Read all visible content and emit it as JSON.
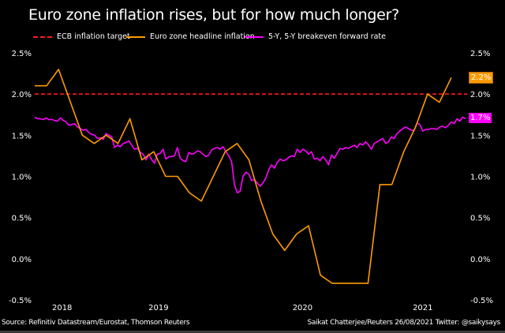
{
  "chart_data": {
    "type": "line",
    "title": "Euro zone inflation rises, but for how much longer?",
    "xlabel": "",
    "ylabel": "",
    "ylim": [
      -0.5,
      2.5
    ],
    "yticks": [
      "2.5%",
      "2.0%",
      "1.5%",
      "1.0%",
      "0.5%",
      "0.0%",
      "-0.5%"
    ],
    "ytick_values": [
      2.5,
      2.0,
      1.5,
      1.0,
      0.5,
      0.0,
      -0.5
    ],
    "xticks": [
      {
        "label": "2018",
        "month_index": 2.3
      },
      {
        "label": "2019",
        "month_index": 10.4
      },
      {
        "label": "2020",
        "month_index": 22.5
      },
      {
        "label": "2021",
        "month_index": 32.6
      }
    ],
    "x_range_months": [
      0,
      35
    ],
    "legend_position": "top",
    "series": [
      {
        "name": "ECB inflation target",
        "style": "dashed",
        "color": "#ff1a1a",
        "value": 2.0
      },
      {
        "name": "Euro zone headline inflation",
        "style": "solid",
        "color": "#ff9a00",
        "end_label": "2.2%",
        "values": [
          2.1,
          2.1,
          2.3,
          1.9,
          1.5,
          1.4,
          1.5,
          1.4,
          1.7,
          1.2,
          1.3,
          1.0,
          1.0,
          0.8,
          0.7,
          1.0,
          1.3,
          1.4,
          1.2,
          0.7,
          0.3,
          0.1,
          0.3,
          0.4,
          -0.2,
          -0.3,
          -0.3,
          -0.3,
          -0.3,
          0.9,
          0.9,
          1.3,
          1.6,
          2.0,
          1.9,
          2.2
        ]
      },
      {
        "name": "5-Y, 5-Y breakeven forward rate",
        "style": "solid",
        "color": "#ff00ff",
        "end_label": "1.7%",
        "values": [
          1.72,
          1.7,
          1.7,
          1.69,
          1.71,
          1.69,
          1.69,
          1.68,
          1.67,
          1.71,
          1.68,
          1.66,
          1.62,
          1.63,
          1.64,
          1.6,
          1.58,
          1.56,
          1.57,
          1.53,
          1.51,
          1.5,
          1.46,
          1.47,
          1.45,
          1.52,
          1.5,
          1.48,
          1.35,
          1.38,
          1.36,
          1.4,
          1.41,
          1.43,
          1.38,
          1.33,
          1.34,
          1.29,
          1.27,
          1.2,
          1.27,
          1.2,
          1.16,
          1.27,
          1.28,
          1.33,
          1.21,
          1.24,
          1.24,
          1.25,
          1.35,
          1.22,
          1.19,
          1.18,
          1.29,
          1.27,
          1.28,
          1.31,
          1.3,
          1.27,
          1.24,
          1.26,
          1.32,
          1.34,
          1.35,
          1.33,
          1.36,
          1.3,
          1.25,
          1.18,
          0.9,
          0.8,
          0.82,
          1.0,
          1.05,
          1.03,
          0.95,
          0.96,
          0.92,
          0.88,
          0.92,
          0.98,
          1.08,
          1.14,
          1.1,
          1.17,
          1.21,
          1.19,
          1.2,
          1.23,
          1.25,
          1.24,
          1.33,
          1.29,
          1.33,
          1.31,
          1.27,
          1.3,
          1.21,
          1.22,
          1.19,
          1.24,
          1.2,
          1.14,
          1.26,
          1.22,
          1.28,
          1.34,
          1.33,
          1.35,
          1.34,
          1.36,
          1.38,
          1.35,
          1.4,
          1.38,
          1.42,
          1.38,
          1.33,
          1.4,
          1.42,
          1.44,
          1.46,
          1.4,
          1.42,
          1.48,
          1.46,
          1.52,
          1.55,
          1.58,
          1.6,
          1.58,
          1.56,
          1.56,
          1.65,
          1.63,
          1.55,
          1.57,
          1.57,
          1.58,
          1.58,
          1.57,
          1.6,
          1.61,
          1.59,
          1.62,
          1.66,
          1.64,
          1.7,
          1.67,
          1.72,
          1.7
        ]
      }
    ]
  },
  "legend": {
    "items": [
      {
        "label": "ECB inflation target"
      },
      {
        "label": "Euro zone headline inflation"
      },
      {
        "label": "5-Y, 5-Y breakeven forward rate"
      }
    ]
  },
  "footer": {
    "source": "Source: Refinitiv Datastream/Eurostat, Thomson Reuters",
    "credit": "Saikat Chatterjee/Reuters 26/08/2021 Twitter: @saikysays"
  }
}
